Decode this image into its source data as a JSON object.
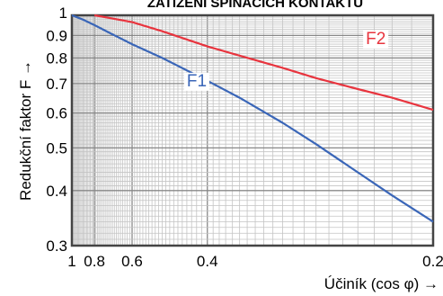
{
  "chart_data": {
    "type": "line",
    "title": "ZATÍŽENÍ SPÍNACÍCH KONTAKTŮ",
    "xlabel": "Účiník (cos φ) →",
    "ylabel": "Redukční faktor F →",
    "x_scale": "reciprocal",
    "y_scale": "log",
    "xlim": [
      1,
      0.2
    ],
    "ylim": [
      0.3,
      1
    ],
    "x_ticks": [
      "1",
      "0.8",
      "0.6",
      "0.4",
      "0.2"
    ],
    "y_ticks": [
      "1",
      "0.9",
      "0.8",
      "0.7",
      "0.6",
      "0.5",
      "0.4",
      "0.3"
    ],
    "grid": true,
    "series": [
      {
        "name": "F1",
        "color": "#3a66b8",
        "x": [
          1,
          0.9,
          0.8,
          0.7,
          0.6,
          0.5,
          0.4,
          0.35,
          0.3,
          0.27,
          0.24,
          0.22,
          0.2
        ],
        "y": [
          1,
          0.98,
          0.95,
          0.91,
          0.86,
          0.8,
          0.71,
          0.65,
          0.57,
          0.51,
          0.44,
          0.39,
          0.34
        ]
      },
      {
        "name": "F2",
        "color": "#e8343e",
        "x": [
          0.8,
          0.7,
          0.6,
          0.5,
          0.4,
          0.35,
          0.3,
          0.27,
          0.24,
          0.22,
          0.2
        ],
        "y": [
          1,
          0.985,
          0.965,
          0.92,
          0.85,
          0.81,
          0.76,
          0.72,
          0.68,
          0.65,
          0.61
        ]
      }
    ]
  }
}
